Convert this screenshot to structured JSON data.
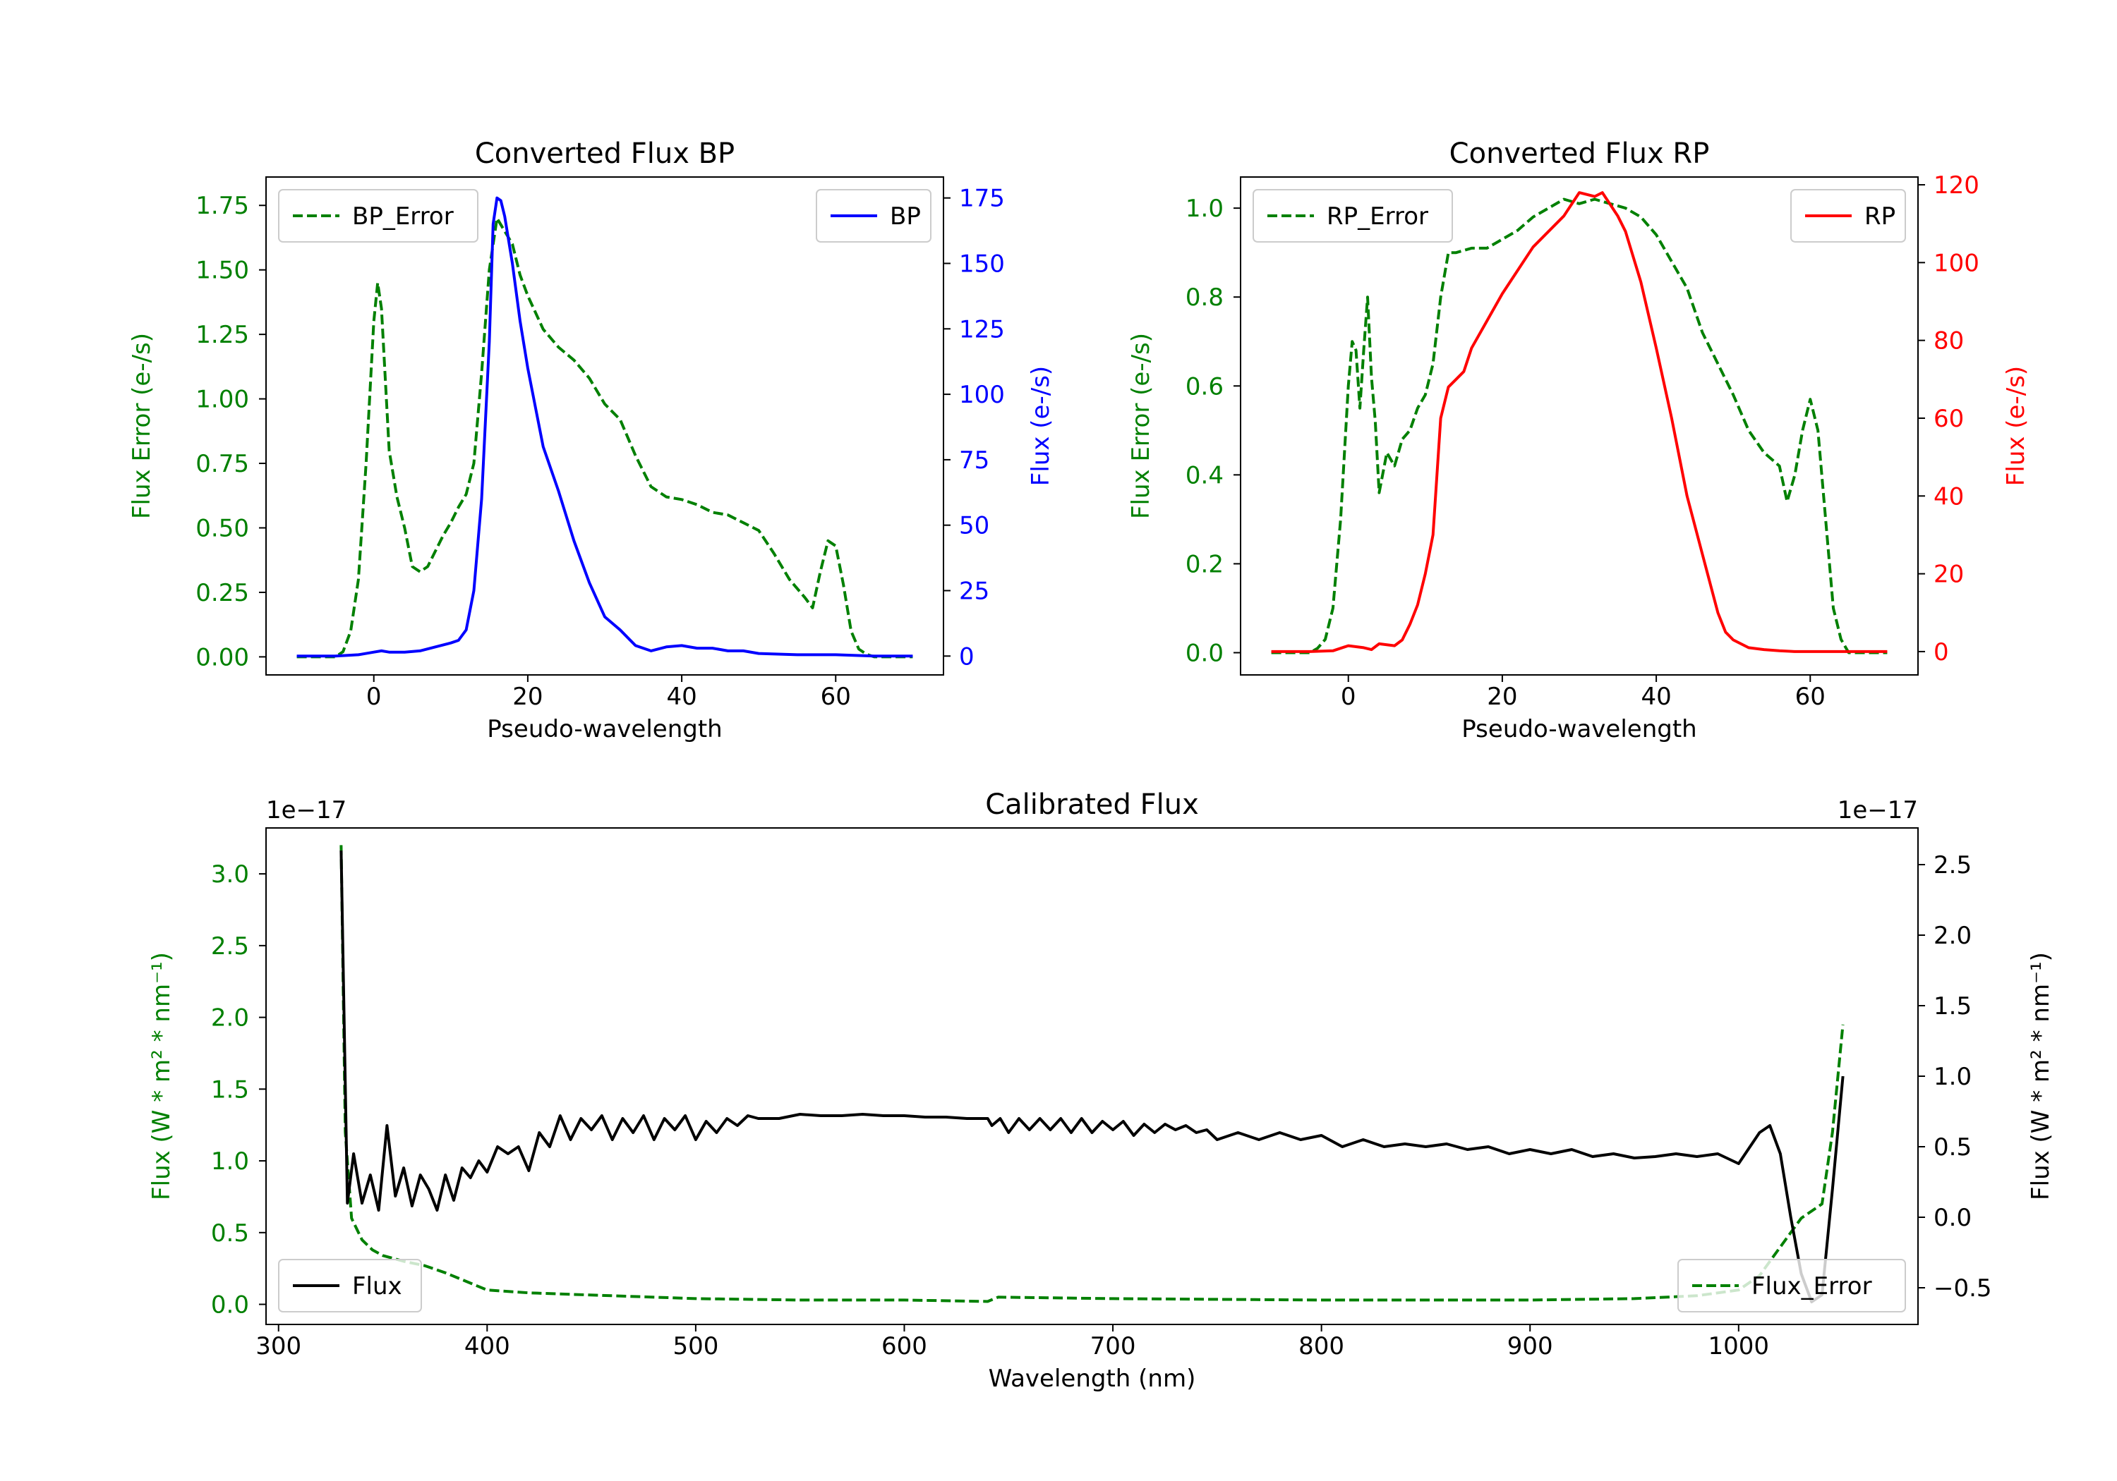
{
  "chart_data": [
    {
      "type": "line",
      "title": "Converted Flux BP",
      "xlabel": "Pseudo-wavelength",
      "ylabel": "Flux Error (e-/s)",
      "ylabel_right": "Flux (e-/s)",
      "xlim": [
        -14,
        74
      ],
      "ylim": [
        -0.07,
        1.86
      ],
      "ylim_right": [
        -7.2,
        183
      ],
      "xticks": [
        "0",
        "20",
        "40",
        "60"
      ],
      "xtick_values": [
        0,
        20,
        40,
        60
      ],
      "yticks": [
        "0.00",
        "0.25",
        "0.50",
        "0.75",
        "1.00",
        "1.25",
        "1.50",
        "1.75"
      ],
      "ytick_values": [
        0,
        0.25,
        0.5,
        0.75,
        1.0,
        1.25,
        1.5,
        1.75
      ],
      "yticks_right": [
        "0",
        "25",
        "50",
        "75",
        "100",
        "125",
        "150",
        "175"
      ],
      "ytick_values_right": [
        0,
        25,
        50,
        75,
        100,
        125,
        150,
        175
      ],
      "series": [
        {
          "name": "BP_Error",
          "axis": "left",
          "style": "dashed",
          "color": "#008000",
          "x": [
            -10,
            -5,
            -4,
            -3,
            -2,
            -1,
            0,
            0.5,
            1,
            2,
            3,
            4,
            5,
            6,
            7,
            8,
            9,
            10,
            11,
            12,
            13,
            14,
            15,
            16,
            17,
            18,
            19,
            20,
            22,
            24,
            26,
            28,
            30,
            32,
            34,
            36,
            38,
            40,
            42,
            44,
            46,
            48,
            50,
            52,
            54,
            56,
            57,
            58,
            59,
            60,
            61,
            62,
            63,
            64,
            65,
            67,
            70
          ],
          "y": [
            0,
            0,
            0.02,
            0.1,
            0.3,
            0.75,
            1.3,
            1.45,
            1.35,
            0.8,
            0.62,
            0.5,
            0.35,
            0.33,
            0.35,
            0.41,
            0.47,
            0.52,
            0.58,
            0.63,
            0.75,
            1.1,
            1.5,
            1.7,
            1.65,
            1.6,
            1.48,
            1.4,
            1.27,
            1.2,
            1.15,
            1.08,
            0.98,
            0.92,
            0.78,
            0.66,
            0.62,
            0.61,
            0.59,
            0.56,
            0.55,
            0.52,
            0.49,
            0.4,
            0.3,
            0.23,
            0.19,
            0.33,
            0.45,
            0.43,
            0.28,
            0.1,
            0.03,
            0.01,
            0,
            0,
            0
          ]
        },
        {
          "name": "BP",
          "axis": "right",
          "style": "solid",
          "color": "#0000ff",
          "x": [
            -10,
            -5,
            -2,
            0,
            1,
            2,
            4,
            6,
            8,
            10,
            11,
            12,
            13,
            14,
            15,
            15.5,
            16,
            16.5,
            17,
            18,
            19,
            20,
            22,
            24,
            26,
            28,
            30,
            32,
            34,
            36,
            38,
            40,
            42,
            44,
            46,
            48,
            50,
            55,
            60,
            65,
            70
          ],
          "y": [
            0,
            0,
            0.5,
            1.5,
            2,
            1.5,
            1.5,
            2,
            3.5,
            5,
            6,
            10,
            25,
            60,
            120,
            165,
            175,
            174,
            168,
            150,
            128,
            110,
            80,
            63,
            44,
            28,
            15,
            10,
            4,
            2,
            3.5,
            4,
            3,
            3,
            2,
            2,
            1,
            0.5,
            0.5,
            0,
            0
          ]
        }
      ],
      "legend": [
        {
          "label": "BP_Error",
          "position": "upper-left"
        },
        {
          "label": "BP",
          "position": "upper-right"
        }
      ]
    },
    {
      "type": "line",
      "title": "Converted Flux RP",
      "xlabel": "Pseudo-wavelength",
      "ylabel": "Flux Error (e-/s)",
      "ylabel_right": "Flux (e-/s)",
      "xlim": [
        -14,
        74
      ],
      "ylim": [
        -0.05,
        1.07
      ],
      "ylim_right": [
        -6,
        122
      ],
      "xticks": [
        "0",
        "20",
        "40",
        "60"
      ],
      "xtick_values": [
        0,
        20,
        40,
        60
      ],
      "yticks": [
        "0.0",
        "0.2",
        "0.4",
        "0.6",
        "0.8",
        "1.0"
      ],
      "ytick_values": [
        0,
        0.2,
        0.4,
        0.6,
        0.8,
        1.0
      ],
      "yticks_right": [
        "0",
        "20",
        "40",
        "60",
        "80",
        "100",
        "120"
      ],
      "ytick_values_right": [
        0,
        20,
        40,
        60,
        80,
        100,
        120
      ],
      "series": [
        {
          "name": "RP_Error",
          "axis": "left",
          "style": "dashed",
          "color": "#008000",
          "x": [
            -10,
            -5,
            -4,
            -3,
            -2,
            -1,
            0,
            0.5,
            1,
            1.5,
            2,
            2.5,
            3,
            3.5,
            4,
            5,
            6,
            7,
            8,
            9,
            10,
            11,
            12,
            13,
            14,
            16,
            18,
            20,
            22,
            24,
            26,
            28,
            30,
            32,
            34,
            36,
            38,
            40,
            42,
            44,
            46,
            48,
            50,
            52,
            54,
            56,
            57,
            58,
            59,
            60,
            61,
            62,
            63,
            64,
            65,
            67,
            70
          ],
          "y": [
            0,
            0,
            0.01,
            0.03,
            0.1,
            0.3,
            0.6,
            0.7,
            0.68,
            0.55,
            0.68,
            0.8,
            0.62,
            0.52,
            0.36,
            0.45,
            0.42,
            0.48,
            0.5,
            0.55,
            0.58,
            0.65,
            0.8,
            0.9,
            0.9,
            0.91,
            0.91,
            0.93,
            0.95,
            0.98,
            1.0,
            1.02,
            1.01,
            1.02,
            1.01,
            1.0,
            0.98,
            0.94,
            0.88,
            0.82,
            0.72,
            0.65,
            0.58,
            0.5,
            0.45,
            0.42,
            0.34,
            0.4,
            0.5,
            0.57,
            0.5,
            0.3,
            0.1,
            0.03,
            0,
            0,
            0
          ]
        },
        {
          "name": "RP",
          "axis": "right",
          "style": "solid",
          "color": "#ff0000",
          "x": [
            -10,
            -5,
            -2,
            0,
            2,
            3,
            4,
            6,
            7,
            8,
            9,
            10,
            11,
            12,
            13,
            14,
            15,
            16,
            18,
            20,
            22,
            24,
            26,
            28,
            30,
            32,
            33,
            34,
            35,
            36,
            38,
            40,
            42,
            44,
            46,
            48,
            49,
            50,
            52,
            54,
            56,
            58,
            60,
            65,
            70
          ],
          "y": [
            0,
            0,
            0.2,
            1.5,
            1,
            0.5,
            2,
            1.5,
            3,
            7,
            12,
            20,
            30,
            60,
            68,
            70,
            72,
            78,
            85,
            92,
            98,
            104,
            108,
            112,
            118,
            117,
            118,
            115,
            112,
            108,
            95,
            78,
            60,
            40,
            25,
            10,
            5,
            3,
            1,
            0.5,
            0.2,
            0,
            0,
            0,
            0
          ]
        }
      ],
      "legend": [
        {
          "label": "RP_Error",
          "position": "upper-left"
        },
        {
          "label": "RP",
          "position": "upper-right"
        }
      ]
    },
    {
      "type": "line",
      "title": "Calibrated Flux",
      "xlabel": "Wavelength (nm)",
      "ylabel": "Flux (W * m² * nm⁻¹)",
      "ylabel_right": "Flux (W * m² * nm⁻¹)",
      "offset_left": "1e−17",
      "offset_right": "1e−17",
      "xlim": [
        294,
        1086
      ],
      "ylim": [
        -0.14,
        3.32
      ],
      "ylim_right": [
        -0.76,
        2.76
      ],
      "xticks": [
        "300",
        "400",
        "500",
        "600",
        "700",
        "800",
        "900",
        "1000"
      ],
      "xtick_values": [
        300,
        400,
        500,
        600,
        700,
        800,
        900,
        1000
      ],
      "yticks": [
        "0.0",
        "0.5",
        "1.0",
        "1.5",
        "2.0",
        "2.5",
        "3.0"
      ],
      "ytick_values": [
        0,
        0.5,
        1.0,
        1.5,
        2.0,
        2.5,
        3.0
      ],
      "yticks_right": [
        "−0.5",
        "0.0",
        "0.5",
        "1.0",
        "1.5",
        "2.0",
        "2.5"
      ],
      "ytick_values_right": [
        -0.5,
        0,
        0.5,
        1.0,
        1.5,
        2.0,
        2.5
      ],
      "series": [
        {
          "name": "Flux_Error",
          "axis": "left",
          "style": "dashed",
          "color": "#008000",
          "x": [
            330,
            332,
            335,
            340,
            345,
            350,
            360,
            370,
            380,
            390,
            400,
            420,
            440,
            460,
            500,
            550,
            600,
            640,
            645,
            700,
            800,
            900,
            950,
            980,
            1000,
            1010,
            1020,
            1030,
            1040,
            1045,
            1050
          ],
          "y": [
            3.2,
            1.2,
            0.6,
            0.45,
            0.38,
            0.34,
            0.3,
            0.27,
            0.22,
            0.16,
            0.1,
            0.08,
            0.07,
            0.06,
            0.04,
            0.03,
            0.03,
            0.02,
            0.05,
            0.04,
            0.03,
            0.03,
            0.04,
            0.06,
            0.1,
            0.2,
            0.4,
            0.6,
            0.7,
            1.2,
            1.95
          ]
        },
        {
          "name": "Flux",
          "axis": "right",
          "style": "solid",
          "color": "#000000",
          "x": [
            330,
            333,
            336,
            340,
            344,
            348,
            352,
            356,
            360,
            364,
            368,
            372,
            376,
            380,
            384,
            388,
            392,
            396,
            400,
            405,
            410,
            415,
            420,
            425,
            430,
            435,
            440,
            445,
            450,
            455,
            460,
            465,
            470,
            475,
            480,
            485,
            490,
            495,
            500,
            505,
            510,
            515,
            520,
            525,
            530,
            540,
            550,
            560,
            570,
            580,
            590,
            600,
            610,
            620,
            630,
            640,
            642,
            646,
            650,
            655,
            660,
            665,
            670,
            675,
            680,
            685,
            690,
            695,
            700,
            705,
            710,
            715,
            720,
            725,
            730,
            735,
            740,
            745,
            750,
            760,
            770,
            780,
            790,
            800,
            810,
            820,
            830,
            840,
            850,
            860,
            870,
            880,
            890,
            900,
            910,
            920,
            930,
            940,
            950,
            960,
            970,
            980,
            990,
            1000,
            1010,
            1015,
            1020,
            1025,
            1030,
            1035,
            1040,
            1045,
            1050
          ],
          "y": [
            2.6,
            0.1,
            0.45,
            0.1,
            0.3,
            0.05,
            0.65,
            0.15,
            0.35,
            0.08,
            0.3,
            0.2,
            0.05,
            0.3,
            0.12,
            0.35,
            0.28,
            0.4,
            0.32,
            0.5,
            0.45,
            0.5,
            0.33,
            0.6,
            0.5,
            0.72,
            0.55,
            0.7,
            0.62,
            0.72,
            0.55,
            0.7,
            0.6,
            0.72,
            0.55,
            0.7,
            0.62,
            0.72,
            0.55,
            0.68,
            0.6,
            0.7,
            0.65,
            0.72,
            0.7,
            0.7,
            0.73,
            0.72,
            0.72,
            0.73,
            0.72,
            0.72,
            0.71,
            0.71,
            0.7,
            0.7,
            0.65,
            0.7,
            0.6,
            0.7,
            0.62,
            0.7,
            0.62,
            0.7,
            0.6,
            0.7,
            0.6,
            0.68,
            0.62,
            0.68,
            0.58,
            0.66,
            0.6,
            0.66,
            0.62,
            0.65,
            0.6,
            0.62,
            0.55,
            0.6,
            0.55,
            0.6,
            0.55,
            0.58,
            0.5,
            0.55,
            0.5,
            0.52,
            0.5,
            0.52,
            0.48,
            0.5,
            0.45,
            0.48,
            0.45,
            0.48,
            0.43,
            0.45,
            0.42,
            0.43,
            0.45,
            0.43,
            0.45,
            0.38,
            0.6,
            0.65,
            0.45,
            0.0,
            -0.4,
            -0.6,
            -0.55,
            0.2,
            1.0
          ]
        }
      ],
      "legend": [
        {
          "label": "Flux",
          "position": "lower-left"
        },
        {
          "label": "Flux_Error",
          "position": "lower-right"
        }
      ]
    }
  ]
}
